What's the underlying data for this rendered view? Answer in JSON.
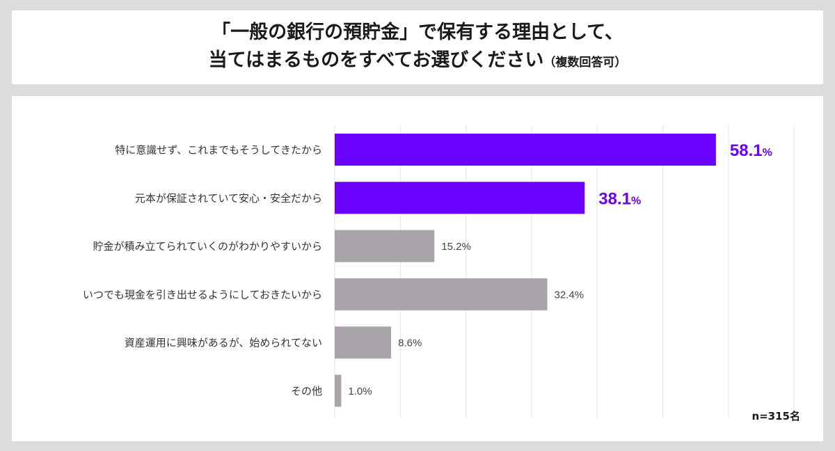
{
  "title": {
    "line1": "「一般の銀行の預貯金」で保有する理由として、",
    "line2": "当てはまるものをすべてお選びください",
    "note": "（複数回答可）"
  },
  "sample_size": "n=315名",
  "colors": {
    "highlight": "#6a00ff",
    "normal": "#a8a4a9",
    "grid": "#e4e4e4"
  },
  "chart_data": {
    "type": "bar",
    "orientation": "horizontal",
    "categories": [
      "特に意識せず、これまでもそうしてきたから",
      "元本が保証されていて安心・安全だから",
      "貯金が積み立てられていくのがわかりやすいから",
      "いつでも現金を引き出せるようにしておきたいから",
      "資産運用に興味があるが、始められてない",
      "その他"
    ],
    "values": [
      58.1,
      38.1,
      15.2,
      32.4,
      8.6,
      1.0
    ],
    "value_labels": [
      "58.1",
      "38.1",
      "15.2%",
      "32.4%",
      "8.6%",
      "1.0%"
    ],
    "percent_sign": "%",
    "highlighted": [
      true,
      true,
      false,
      false,
      false,
      false
    ],
    "xlim": [
      0,
      70
    ],
    "grid": true
  }
}
